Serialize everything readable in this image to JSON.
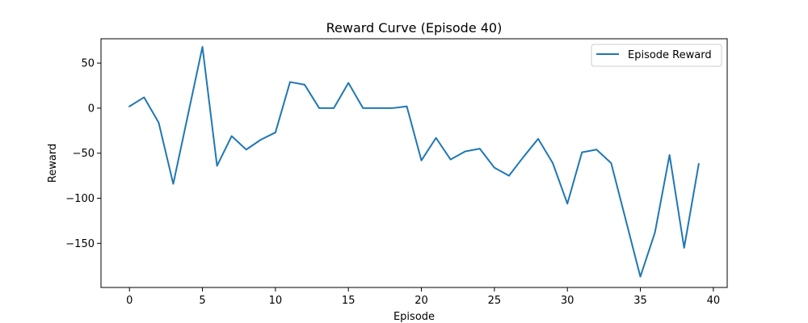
{
  "chart_data": {
    "type": "line",
    "title": "Reward Curve (Episode 40)",
    "xlabel": "Episode",
    "ylabel": "Reward",
    "xlim": [
      -1.95,
      40.95
    ],
    "ylim": [
      -199,
      77
    ],
    "xticks": [
      0,
      5,
      10,
      15,
      20,
      25,
      30,
      35,
      40
    ],
    "yticks": [
      50,
      0,
      -50,
      -100,
      -150
    ],
    "grid": false,
    "legend_position": "top-right",
    "series": [
      {
        "name": "Episode Reward",
        "color": "#1f77b4",
        "x": [
          0,
          1,
          2,
          3,
          4,
          5,
          6,
          7,
          8,
          9,
          10,
          11,
          12,
          13,
          14,
          15,
          16,
          17,
          18,
          19,
          20,
          21,
          22,
          23,
          24,
          25,
          26,
          27,
          28,
          29,
          30,
          31,
          32,
          33,
          34,
          35,
          36,
          37,
          38,
          39
        ],
        "y": [
          2,
          12,
          -16,
          -84,
          -8,
          68,
          -64,
          -31,
          -46,
          -35,
          -27,
          29,
          26,
          0,
          0,
          28,
          0,
          0,
          0,
          2,
          -58,
          -33,
          -57,
          -48,
          -45,
          -66,
          -75,
          -54,
          -34,
          -61,
          -106,
          -49,
          -46,
          -61,
          -124,
          -187,
          -138,
          -52,
          -155,
          -62
        ]
      }
    ]
  }
}
